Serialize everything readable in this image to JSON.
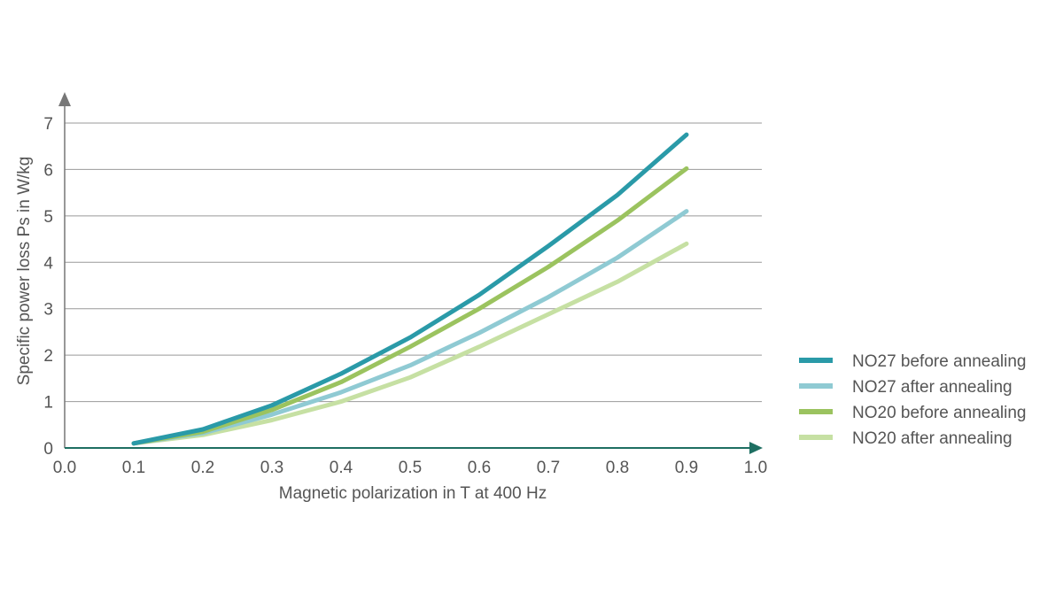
{
  "chart_data": {
    "type": "line",
    "title": "",
    "xlabel": "Magnetic polarization in T at 400 Hz",
    "ylabel": "Specific power loss Ps in W/kg",
    "xlim": [
      0.0,
      1.0
    ],
    "ylim": [
      0,
      7
    ],
    "x_ticks": [
      "0.0",
      "0.1",
      "0.2",
      "0.3",
      "0.4",
      "0.5",
      "0.6",
      "0.7",
      "0.8",
      "0.9",
      "1.0"
    ],
    "y_ticks": [
      "0",
      "1",
      "2",
      "3",
      "4",
      "5",
      "6",
      "7"
    ],
    "grid": "horizontal",
    "legend_position": "right",
    "axis_color": "#1e6f62",
    "grid_color": "#999999",
    "series": [
      {
        "name": "NO27 before annealing",
        "color": "#2a9aa8",
        "x": [
          0.1,
          0.2,
          0.3,
          0.4,
          0.5,
          0.6,
          0.7,
          0.8,
          0.9
        ],
        "y": [
          0.1,
          0.4,
          0.92,
          1.6,
          2.38,
          3.3,
          4.35,
          5.45,
          6.75
        ]
      },
      {
        "name": "NO27 after annealing",
        "color": "#8fcad3",
        "x": [
          0.1,
          0.2,
          0.3,
          0.4,
          0.5,
          0.6,
          0.7,
          0.8,
          0.9
        ],
        "y": [
          0.1,
          0.32,
          0.72,
          1.2,
          1.78,
          2.48,
          3.25,
          4.1,
          5.1
        ]
      },
      {
        "name": "NO20 before annealing",
        "color": "#9bc35f",
        "x": [
          0.1,
          0.2,
          0.3,
          0.4,
          0.5,
          0.6,
          0.7,
          0.8,
          0.9
        ],
        "y": [
          0.1,
          0.35,
          0.82,
          1.42,
          2.18,
          3.0,
          3.9,
          4.9,
          6.02
        ]
      },
      {
        "name": "NO20 after annealing",
        "color": "#c6e0a3",
        "x": [
          0.1,
          0.2,
          0.3,
          0.4,
          0.5,
          0.6,
          0.7,
          0.8,
          0.9
        ],
        "y": [
          0.1,
          0.28,
          0.6,
          1.0,
          1.52,
          2.18,
          2.88,
          3.58,
          4.4
        ]
      }
    ]
  }
}
